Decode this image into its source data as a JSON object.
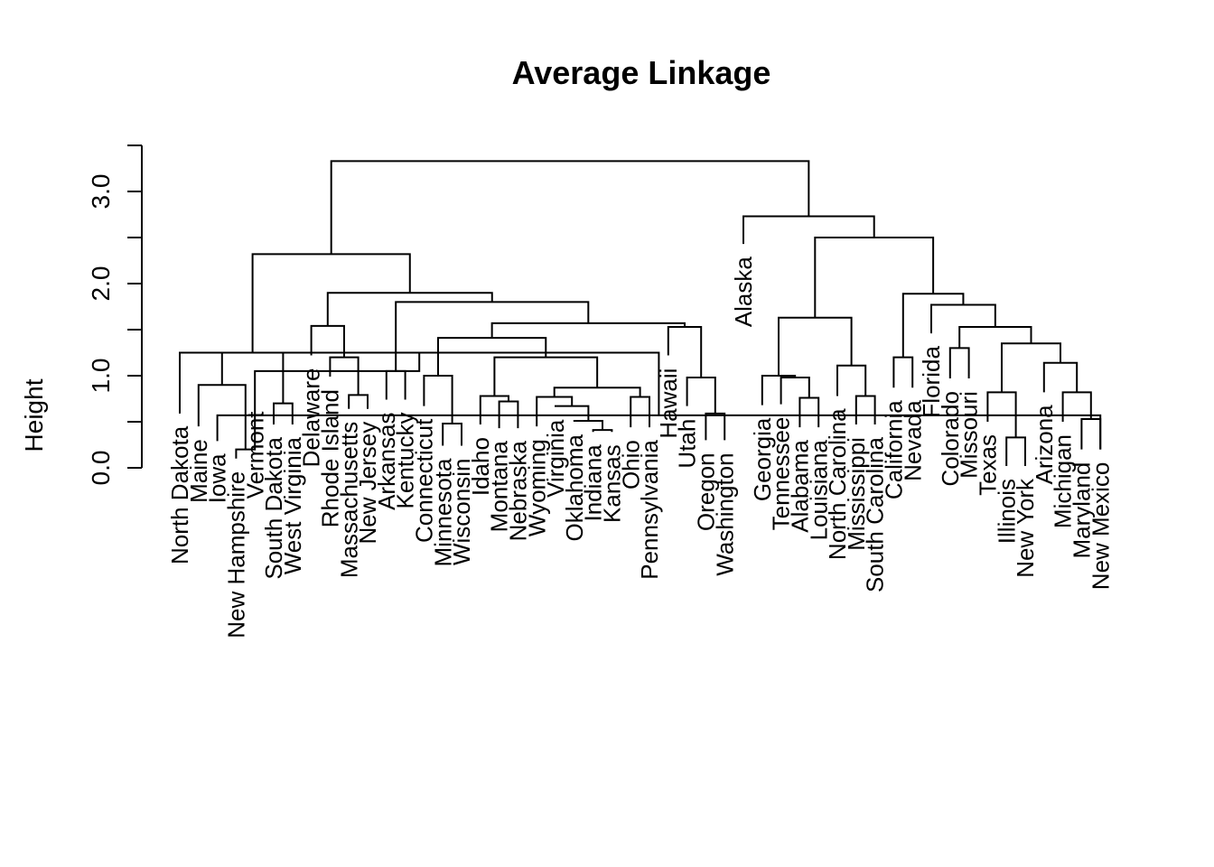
{
  "chart_data": {
    "type": "dendrogram",
    "title": "Average Linkage",
    "ylabel": "Height",
    "ylim": [
      0,
      3.5
    ],
    "yticks": [
      0,
      0.5,
      1,
      1.5,
      2,
      2.5,
      3,
      3.5
    ],
    "ytick_labels": [
      {
        "value": 0,
        "label": "0.0"
      },
      {
        "value": 1,
        "label": "1.0"
      },
      {
        "value": 2,
        "label": "2.0"
      },
      {
        "value": 3,
        "label": "3.0"
      }
    ],
    "leaves": [
      {
        "name": "North Dakota",
        "height": 0.59
      },
      {
        "name": "Maine",
        "height": 0.45
      },
      {
        "name": "Iowa",
        "height": 0.29
      },
      {
        "name": "New Hampshire",
        "height": 0.1
      },
      {
        "name": "Vermont",
        "height": 0.75
      },
      {
        "name": "South Dakota",
        "height": 0.47
      },
      {
        "name": "West Virginia",
        "height": 0.47
      },
      {
        "name": "Delaware",
        "height": 1.22
      },
      {
        "name": "Rhode Island",
        "height": 0.99
      },
      {
        "name": "Massachusetts",
        "height": 0.64
      },
      {
        "name": "New Jersey",
        "height": 0.64
      },
      {
        "name": "Arkansas",
        "height": 0.74
      },
      {
        "name": "Kentucky",
        "height": 0.74
      },
      {
        "name": "Connecticut",
        "height": 0.67
      },
      {
        "name": "Minnesota",
        "height": 0.24
      },
      {
        "name": "Wisconsin",
        "height": 0.24
      },
      {
        "name": "Idaho",
        "height": 0.47
      },
      {
        "name": "Montana",
        "height": 0.43
      },
      {
        "name": "Nebraska",
        "height": 0.43
      },
      {
        "name": "Wyoming",
        "height": 0.45
      },
      {
        "name": "Virginia",
        "height": 0.66
      },
      {
        "name": "Oklahoma",
        "height": 0.5
      },
      {
        "name": "Indiana",
        "height": 0.39
      },
      {
        "name": "Kansas",
        "height": 0.39
      },
      {
        "name": "Ohio",
        "height": 0.44
      },
      {
        "name": "Pennsylvania",
        "height": 0.44
      },
      {
        "name": "Hawaii",
        "height": 1.22
      },
      {
        "name": "Utah",
        "height": 0.67
      },
      {
        "name": "Oregon",
        "height": 0.3
      },
      {
        "name": "Washington",
        "height": 0.3
      },
      {
        "name": "Alaska",
        "height": 2.43
      },
      {
        "name": "Georgia",
        "height": 0.68
      },
      {
        "name": "Tennessee",
        "height": 0.69
      },
      {
        "name": "Alabama",
        "height": 0.44
      },
      {
        "name": "Louisiana",
        "height": 0.44
      },
      {
        "name": "North Carolina",
        "height": 0.78
      },
      {
        "name": "Mississippi",
        "height": 0.47
      },
      {
        "name": "South Carolina",
        "height": 0.47
      },
      {
        "name": "California",
        "height": 0.87
      },
      {
        "name": "Nevada",
        "height": 0.87
      },
      {
        "name": "Florida",
        "height": 1.46
      },
      {
        "name": "Colorado",
        "height": 0.97
      },
      {
        "name": "Missouri",
        "height": 0.97
      },
      {
        "name": "Texas",
        "height": 0.5
      },
      {
        "name": "Illinois",
        "height": 0.02
      },
      {
        "name": "New York",
        "height": 0.02
      },
      {
        "name": "Arizona",
        "height": 0.82
      },
      {
        "name": "Michigan",
        "height": 0.5
      },
      {
        "name": "Maryland",
        "height": 0.2
      },
      {
        "name": "New Mexico",
        "height": 0.2
      }
    ],
    "merges": [
      [
        4,
        5,
        0.2
      ],
      [
        3,
        50,
        0.57
      ],
      [
        2,
        51,
        0.9
      ],
      [
        1,
        52,
        1.25
      ],
      [
        6,
        7,
        0.7
      ],
      [
        5,
        54,
        1.05
      ],
      [
        53,
        55,
        1.25
      ],
      [
        10,
        11,
        0.79
      ],
      [
        9,
        58,
        1.2
      ],
      [
        8,
        59,
        1.54
      ],
      [
        12,
        13,
        1.05
      ],
      [
        15,
        16,
        0.48
      ],
      [
        14,
        62,
        1.0
      ],
      [
        18,
        19,
        0.72
      ],
      [
        17,
        64,
        0.78
      ],
      [
        23,
        24,
        0.41
      ],
      [
        22,
        66,
        0.51
      ],
      [
        21,
        67,
        0.67
      ],
      [
        20,
        68,
        0.77
      ],
      [
        25,
        26,
        0.77
      ],
      [
        69,
        70,
        0.87
      ],
      [
        65,
        71,
        1.2
      ],
      [
        63,
        72,
        1.41
      ],
      [
        29,
        30,
        0.59
      ],
      [
        28,
        74,
        0.98
      ],
      [
        27,
        75,
        1.53
      ],
      [
        73,
        76,
        1.57
      ],
      [
        61,
        77,
        1.8
      ],
      [
        60,
        78,
        1.9
      ],
      [
        57,
        79,
        2.32
      ],
      [
        34,
        35,
        0.76
      ],
      [
        33,
        81,
        0.98
      ],
      [
        32,
        82,
        1.0
      ],
      [
        37,
        38,
        0.78
      ],
      [
        36,
        84,
        1.11
      ],
      [
        83,
        85,
        1.63
      ],
      [
        39,
        40,
        1.2
      ],
      [
        42,
        43,
        1.3
      ],
      [
        45,
        46,
        0.33
      ],
      [
        44,
        89,
        0.82
      ],
      [
        49,
        50,
        0.53
      ],
      [
        48,
        91,
        0.82
      ],
      [
        47,
        92,
        1.14
      ],
      [
        90,
        93,
        1.35
      ],
      [
        88,
        94,
        1.53
      ],
      [
        41,
        95,
        1.77
      ],
      [
        87,
        96,
        1.89
      ],
      [
        86,
        97,
        2.5
      ],
      [
        31,
        98,
        2.73
      ],
      [
        80,
        99,
        3.33
      ]
    ]
  }
}
